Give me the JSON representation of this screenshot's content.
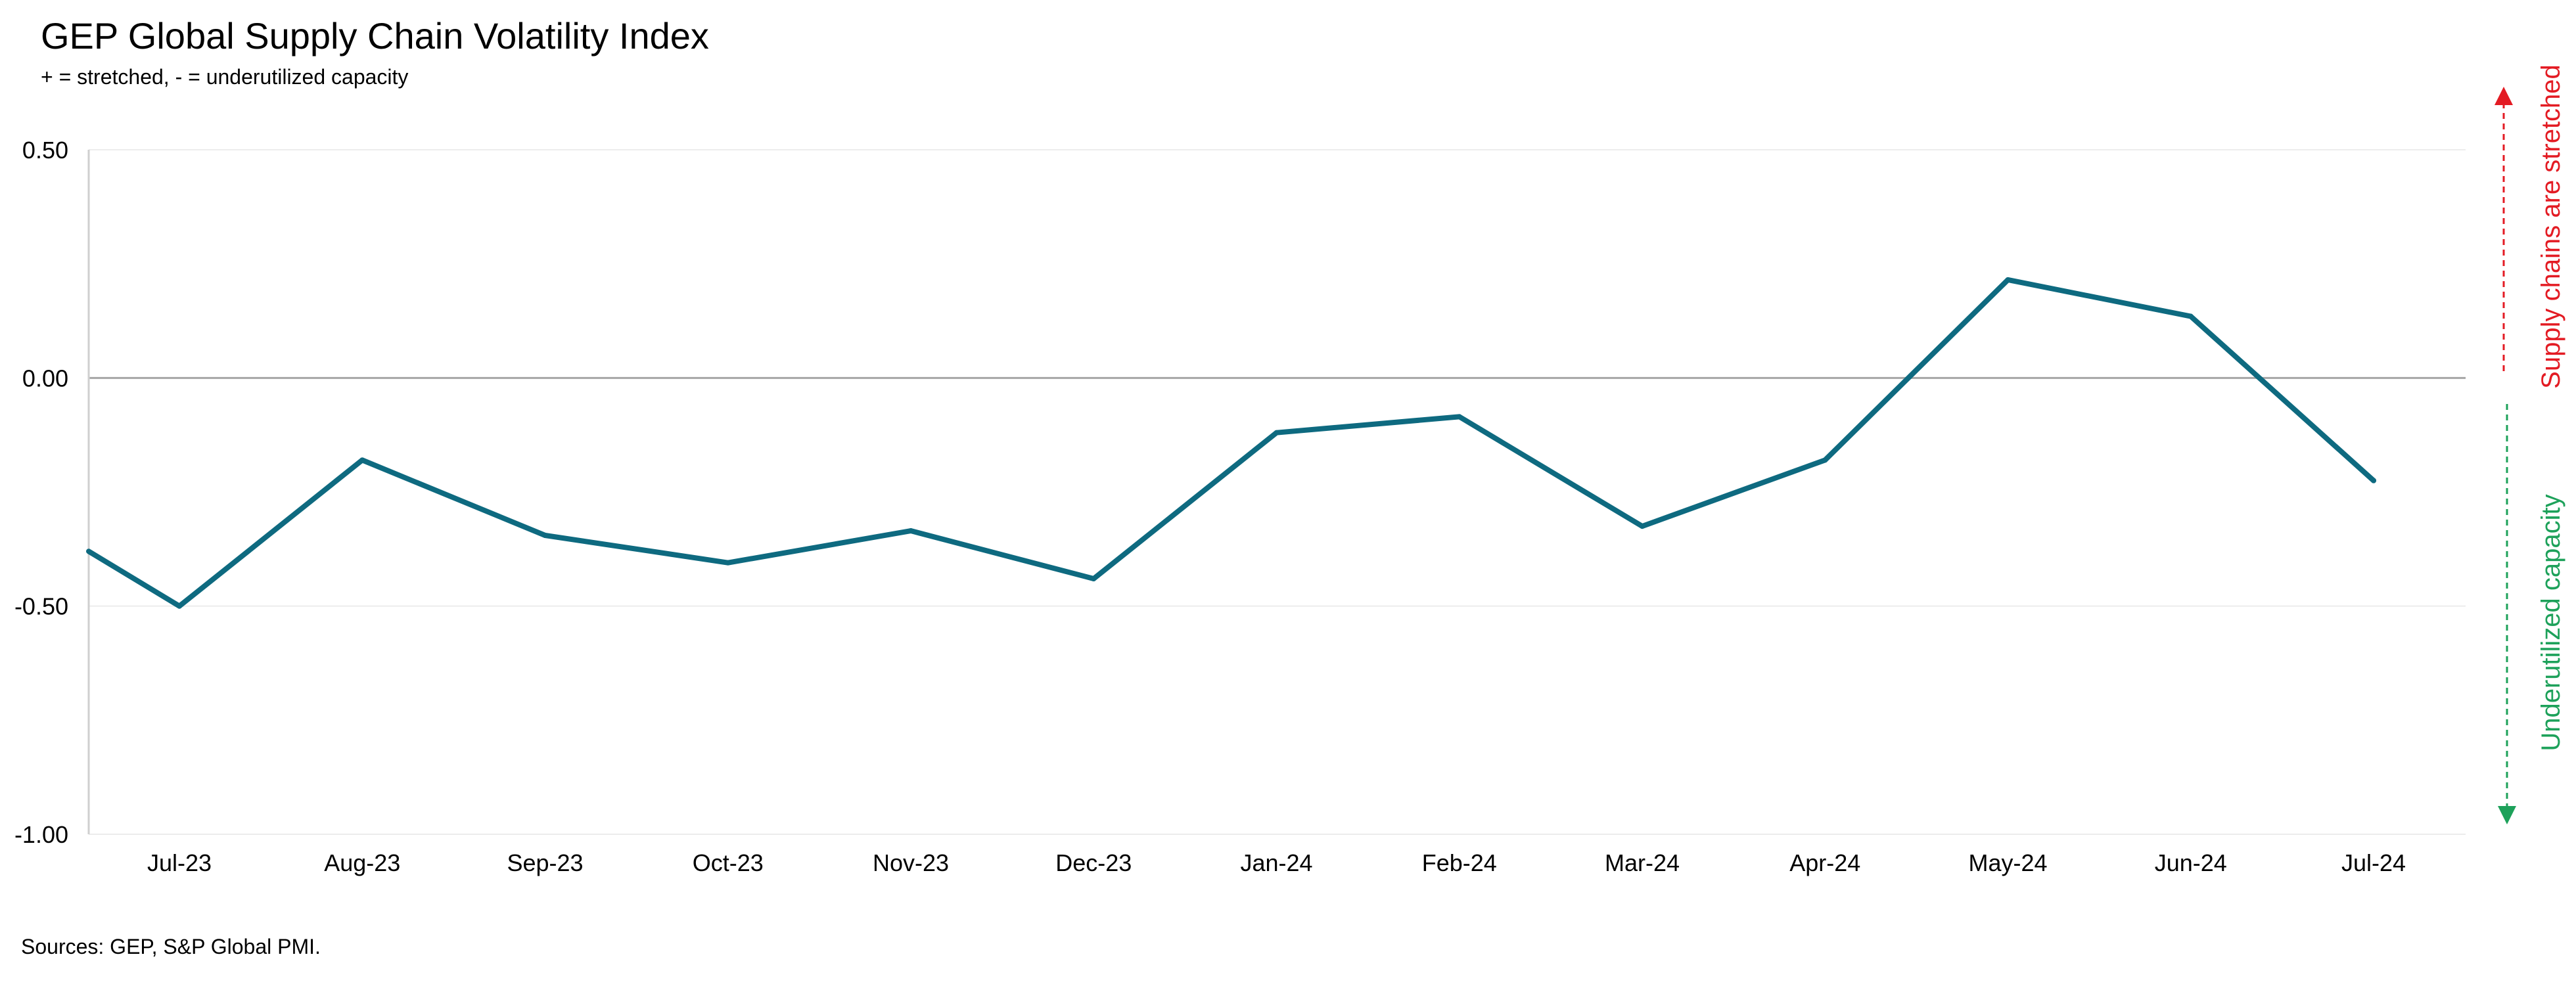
{
  "chart_data": {
    "type": "line",
    "title": "GEP Global Supply Chain Volatility Index",
    "subtitle": "+ = stretched, - = underutilized capacity",
    "source": "Sources: GEP, S&P Global PMI.",
    "x_labels": [
      "Jul-23",
      "Aug-23",
      "Sep-23",
      "Oct-23",
      "Nov-23",
      "Dec-23",
      "Jan-24",
      "Feb-24",
      "Mar-24",
      "Apr-24",
      "May-24",
      "Jun-24",
      "Jul-24"
    ],
    "series": [
      {
        "start_value": -0.38,
        "values": [
          -0.5,
          -0.18,
          -0.345,
          -0.405,
          -0.335,
          -0.44,
          -0.12,
          -0.085,
          -0.325,
          -0.18,
          0.215,
          0.135,
          -0.225
        ],
        "color": "#0e6a80"
      }
    ],
    "y_ticks": [
      "0.50",
      "0.00",
      "-0.50",
      "-1.00"
    ],
    "y_tick_values": [
      0.5,
      0.0,
      -0.5,
      -1.0
    ],
    "ylim": [
      -1.0,
      0.5
    ],
    "grid": true,
    "zero_line_color": "#a6a6a6",
    "annotations": {
      "upper": {
        "text": "Supply chains are stretched",
        "color": "#e31b23"
      },
      "lower": {
        "text": "Underutilized capacity",
        "color": "#1da15a"
      }
    }
  }
}
